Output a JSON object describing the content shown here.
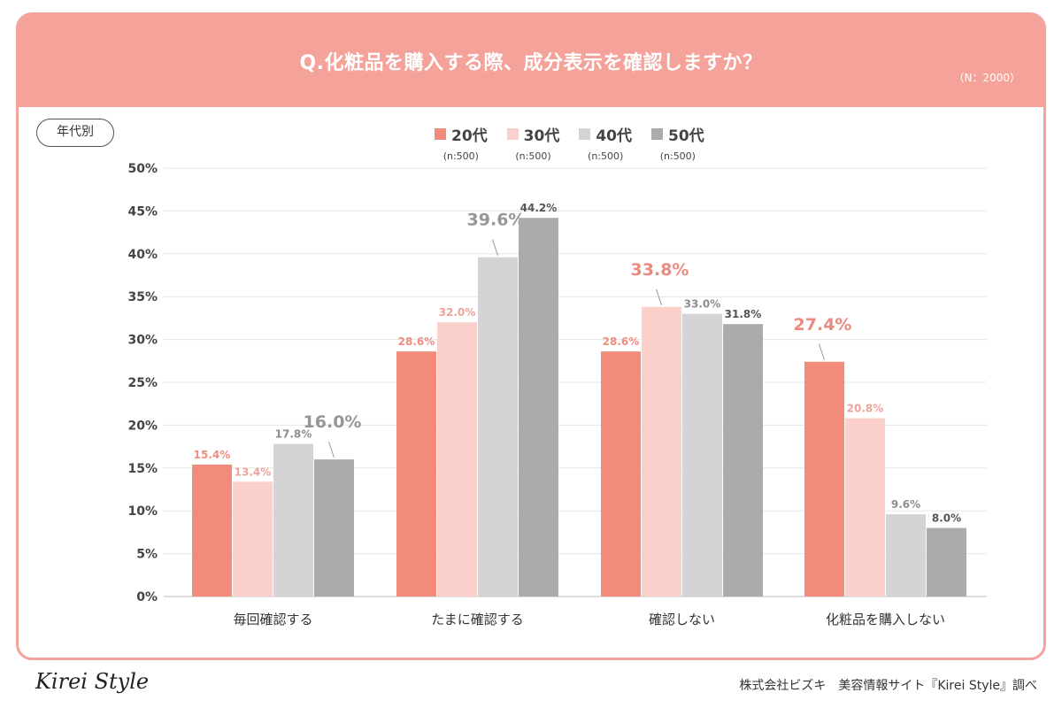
{
  "header": {
    "question": "Q.化粧品を購入する際、成分表示を確認しますか？",
    "sample": "（N：2000）"
  },
  "segment_tag": "年代別",
  "legend": [
    {
      "label": "20代",
      "n": "(n:500)",
      "color": "#f28b7c"
    },
    {
      "label": "30代",
      "n": "(n:500)",
      "color": "#fbd0cb"
    },
    {
      "label": "40代",
      "n": "(n:500)",
      "color": "#d6d3d6"
    },
    {
      "label": "50代",
      "n": "(n:500)",
      "color": "#adaaae"
    }
  ],
  "chart_data": {
    "type": "bar",
    "title": "Q.化粧品を購入する際、成分表示を確認しますか？",
    "categories": [
      "毎回確認する",
      "たまに確認する",
      "確認しない",
      "化粧品を購入しない"
    ],
    "series": [
      {
        "name": "20代",
        "values": [
          15.4,
          28.6,
          28.6,
          27.4
        ]
      },
      {
        "name": "30代",
        "values": [
          13.4,
          32.0,
          33.8,
          20.8
        ]
      },
      {
        "name": "40代",
        "values": [
          17.8,
          39.6,
          33.0,
          9.6
        ]
      },
      {
        "name": "50代",
        "values": [
          16.0,
          44.2,
          31.8,
          8.0
        ]
      }
    ],
    "ylim": [
      0,
      50
    ],
    "yticks": [
      "0%",
      "5%",
      "10%",
      "15%",
      "20%",
      "25%",
      "30%",
      "35%",
      "40%",
      "45%",
      "50%"
    ],
    "value_labels": [
      [
        "15.4%",
        "28.6%",
        "28.6%",
        "27.4%"
      ],
      [
        "13.4%",
        "32.0%",
        "33.8%",
        "20.8%"
      ],
      [
        "17.8%",
        "39.6%",
        "33.0%",
        "9.6%"
      ],
      [
        "16.0%",
        "44.2%",
        "31.8%",
        "8.0%"
      ]
    ],
    "highlight": [
      [
        3,
        0
      ],
      [
        1,
        2
      ],
      [
        0,
        3
      ],
      [
        2,
        1
      ]
    ],
    "grid": true,
    "legend_position": "top"
  },
  "footer": {
    "logo": "Kirei Style",
    "credit": "株式会社ビズキ　美容情報サイト『Kirei Style』調べ"
  }
}
